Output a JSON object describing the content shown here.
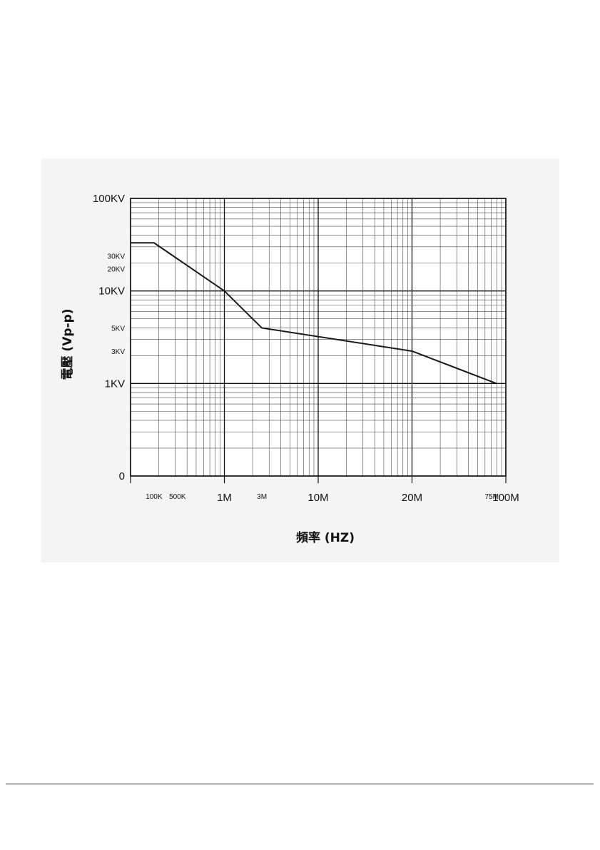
{
  "chart_data": {
    "type": "line",
    "title": "",
    "xlabel": "頻率 (HZ)",
    "ylabel": "電壓 (Vp-p)",
    "grid": true,
    "legend": "none",
    "x_ticks": [
      {
        "label": "100K",
        "pos": 0.25,
        "size": "small"
      },
      {
        "label": "500K",
        "pos": 0.5,
        "size": "small"
      },
      {
        "label": "1M",
        "pos": 1,
        "size": "large"
      },
      {
        "label": "3M",
        "pos": 1.4,
        "size": "small"
      },
      {
        "label": "10M",
        "pos": 2,
        "size": "large"
      },
      {
        "label": "20M",
        "pos": 3,
        "size": "large"
      },
      {
        "label": "75M",
        "pos": 3.85,
        "size": "small"
      },
      {
        "label": "100M",
        "pos": 4,
        "size": "large"
      }
    ],
    "y_ticks": [
      {
        "label": "0",
        "pos": 0,
        "size": "large"
      },
      {
        "label": "1KV",
        "pos": 1,
        "size": "large"
      },
      {
        "label": "3KV",
        "pos": 1.35,
        "size": "small"
      },
      {
        "label": "5KV",
        "pos": 1.6,
        "size": "small"
      },
      {
        "label": "10KV",
        "pos": 2,
        "size": "large"
      },
      {
        "label": "20KV",
        "pos": 2.24,
        "size": "small"
      },
      {
        "label": "30KV",
        "pos": 2.38,
        "size": "small"
      },
      {
        "label": "100KV",
        "pos": 3,
        "size": "large"
      }
    ],
    "series": [
      {
        "color": "#1a1a1a",
        "points": [
          {
            "x": 0,
            "y": 2.52
          },
          {
            "x": 0.25,
            "y": 2.52
          },
          {
            "x": 1,
            "y": 2.0
          },
          {
            "x": 1.4,
            "y": 1.6
          },
          {
            "x": 3,
            "y": 1.35
          },
          {
            "x": 3.9,
            "y": 1.0
          }
        ]
      }
    ]
  }
}
